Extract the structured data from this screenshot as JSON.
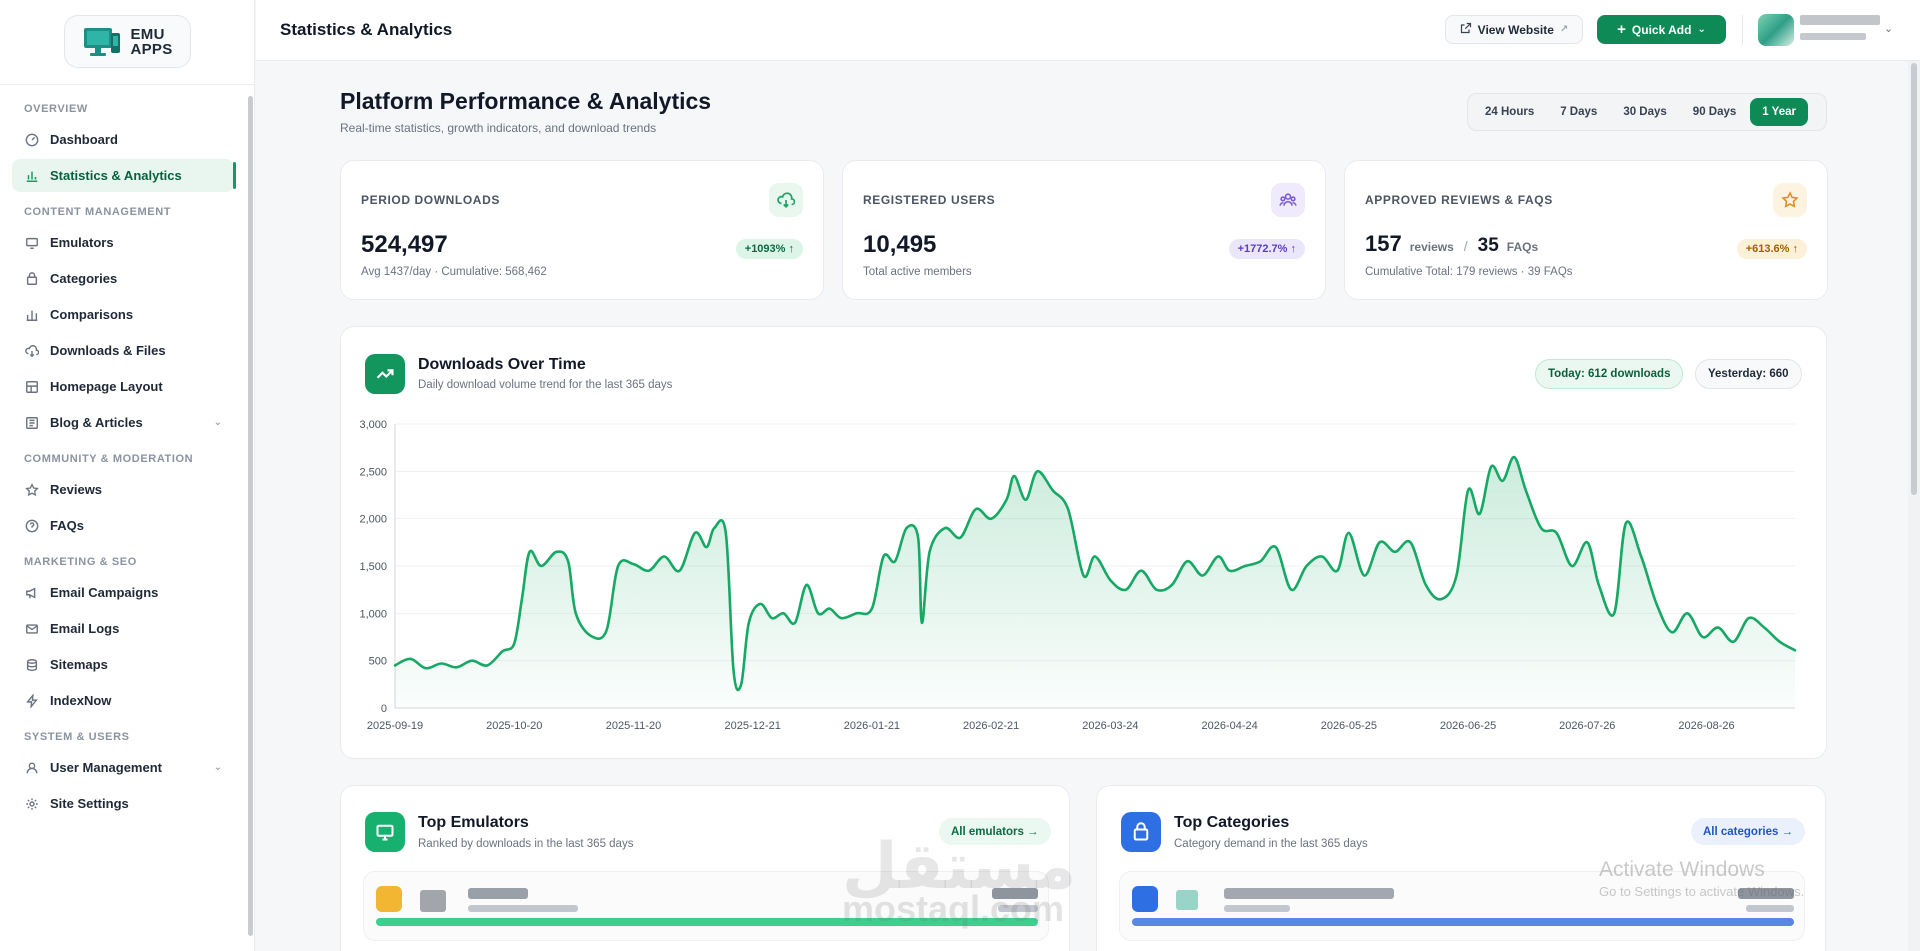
{
  "sidebar": {
    "logo_line1": "EMU",
    "logo_line2": "APPS",
    "sections": [
      {
        "title": "OVERVIEW",
        "items": [
          {
            "label": "Dashboard",
            "icon": "gauge-icon",
            "active": false
          },
          {
            "label": "Statistics & Analytics",
            "icon": "bar-chart-icon",
            "active": true
          }
        ]
      },
      {
        "title": "CONTENT MANAGEMENT",
        "items": [
          {
            "label": "Emulators",
            "icon": "monitor-icon"
          },
          {
            "label": "Categories",
            "icon": "folder-icon"
          },
          {
            "label": "Comparisons",
            "icon": "columns-icon"
          },
          {
            "label": "Downloads & Files",
            "icon": "cloud-download-icon"
          },
          {
            "label": "Homepage Layout",
            "icon": "layout-icon"
          },
          {
            "label": "Blog & Articles",
            "icon": "article-icon",
            "expandable": true
          }
        ]
      },
      {
        "title": "COMMUNITY & MODERATION",
        "items": [
          {
            "label": "Reviews",
            "icon": "star-icon"
          },
          {
            "label": "FAQs",
            "icon": "help-circle-icon"
          }
        ]
      },
      {
        "title": "MARKETING & SEO",
        "items": [
          {
            "label": "Email Campaigns",
            "icon": "megaphone-icon"
          },
          {
            "label": "Email Logs",
            "icon": "mail-icon"
          },
          {
            "label": "Sitemaps",
            "icon": "database-icon"
          },
          {
            "label": "IndexNow",
            "icon": "bolt-icon"
          }
        ]
      },
      {
        "title": "SYSTEM & USERS",
        "items": [
          {
            "label": "User Management",
            "icon": "users-icon",
            "expandable": true
          },
          {
            "label": "Site Settings",
            "icon": "gear-icon"
          }
        ]
      }
    ]
  },
  "topbar": {
    "title": "Statistics & Analytics",
    "view_website": "View Website",
    "quick_add": "Quick Add"
  },
  "header": {
    "title": "Platform Performance & Analytics",
    "subtitle": "Real-time statistics, growth indicators, and download trends",
    "ranges": [
      "24 Hours",
      "7 Days",
      "30 Days",
      "90 Days",
      "1 Year"
    ],
    "selected_range": "1 Year"
  },
  "stats": {
    "downloads": {
      "label": "PERIOD DOWNLOADS",
      "value": "524,497",
      "note": "Avg 1437/day · Cumulative: 568,462",
      "change": "+1093% ↑"
    },
    "users": {
      "label": "REGISTERED USERS",
      "value": "10,495",
      "note": "Total active members",
      "change": "+1772.7% ↑"
    },
    "reviews": {
      "label": "APPROVED REVIEWS & FAQS",
      "reviews_value": "157",
      "reviews_unit": "reviews",
      "separator": "/",
      "faqs_value": "35",
      "faqs_unit": "FAQs",
      "note": "Cumulative Total: 179 reviews · 39 FAQs",
      "change": "+613.6% ↑"
    }
  },
  "chart_card": {
    "title": "Downloads Over Time",
    "subtitle": "Daily download volume trend for the last 365 days",
    "today": "Today: 612 downloads",
    "yesterday": "Yesterday: 660"
  },
  "chart_data": {
    "type": "area",
    "title": "Downloads Over Time",
    "xlabel": "",
    "ylabel": "",
    "ylim": [
      0,
      3000
    ],
    "y_ticks": [
      "0",
      "500",
      "1,000",
      "1,500",
      "2,000",
      "2,500",
      "3,000"
    ],
    "x_tick_labels": [
      "2025-09-19",
      "2025-10-20",
      "2025-11-20",
      "2025-12-21",
      "2026-01-21",
      "2026-02-21",
      "2026-03-24",
      "2026-04-24",
      "2026-05-25",
      "2026-06-25",
      "2026-07-26",
      "2026-08-26"
    ],
    "x_start": "2025-09-19",
    "x_end": "2026-09-18",
    "grid": true,
    "color": "#16a864",
    "points": [
      [
        "2025-09-19",
        450
      ],
      [
        "2025-09-23",
        520
      ],
      [
        "2025-09-27",
        420
      ],
      [
        "2025-10-01",
        470
      ],
      [
        "2025-10-05",
        430
      ],
      [
        "2025-10-09",
        500
      ],
      [
        "2025-10-13",
        450
      ],
      [
        "2025-10-17",
        600
      ],
      [
        "2025-10-20",
        680
      ],
      [
        "2025-10-22",
        1150
      ],
      [
        "2025-10-24",
        1650
      ],
      [
        "2025-10-27",
        1500
      ],
      [
        "2025-10-31",
        1650
      ],
      [
        "2025-11-03",
        1550
      ],
      [
        "2025-11-05",
        1000
      ],
      [
        "2025-11-09",
        760
      ],
      [
        "2025-11-13",
        820
      ],
      [
        "2025-11-16",
        1500
      ],
      [
        "2025-11-20",
        1520
      ],
      [
        "2025-11-24",
        1450
      ],
      [
        "2025-11-28",
        1600
      ],
      [
        "2025-12-02",
        1450
      ],
      [
        "2025-12-06",
        1850
      ],
      [
        "2025-12-09",
        1700
      ],
      [
        "2025-12-11",
        1900
      ],
      [
        "2025-12-14",
        1850
      ],
      [
        "2025-12-16",
        400
      ],
      [
        "2025-12-18",
        250
      ],
      [
        "2025-12-20",
        900
      ],
      [
        "2025-12-23",
        1100
      ],
      [
        "2025-12-26",
        950
      ],
      [
        "2025-12-29",
        1000
      ],
      [
        "2026-01-01",
        900
      ],
      [
        "2026-01-04",
        1300
      ],
      [
        "2026-01-07",
        1000
      ],
      [
        "2026-01-10",
        1050
      ],
      [
        "2026-01-13",
        950
      ],
      [
        "2026-01-17",
        1000
      ],
      [
        "2026-01-21",
        1050
      ],
      [
        "2026-01-24",
        1600
      ],
      [
        "2026-01-27",
        1550
      ],
      [
        "2026-01-30",
        1900
      ],
      [
        "2026-02-02",
        1800
      ],
      [
        "2026-02-03",
        900
      ],
      [
        "2026-02-05",
        1650
      ],
      [
        "2026-02-09",
        1900
      ],
      [
        "2026-02-13",
        1800
      ],
      [
        "2026-02-17",
        2100
      ],
      [
        "2026-02-21",
        2000
      ],
      [
        "2026-02-25",
        2200
      ],
      [
        "2026-02-27",
        2450
      ],
      [
        "2026-03-02",
        2200
      ],
      [
        "2026-03-05",
        2500
      ],
      [
        "2026-03-09",
        2300
      ],
      [
        "2026-03-13",
        2100
      ],
      [
        "2026-03-17",
        1400
      ],
      [
        "2026-03-20",
        1600
      ],
      [
        "2026-03-24",
        1350
      ],
      [
        "2026-03-28",
        1250
      ],
      [
        "2026-04-01",
        1450
      ],
      [
        "2026-04-05",
        1250
      ],
      [
        "2026-04-09",
        1300
      ],
      [
        "2026-04-13",
        1550
      ],
      [
        "2026-04-17",
        1400
      ],
      [
        "2026-04-21",
        1600
      ],
      [
        "2026-04-24",
        1450
      ],
      [
        "2026-04-28",
        1500
      ],
      [
        "2026-05-02",
        1550
      ],
      [
        "2026-05-06",
        1700
      ],
      [
        "2026-05-10",
        1250
      ],
      [
        "2026-05-14",
        1500
      ],
      [
        "2026-05-18",
        1600
      ],
      [
        "2026-05-22",
        1450
      ],
      [
        "2026-05-25",
        1850
      ],
      [
        "2026-05-29",
        1400
      ],
      [
        "2026-06-02",
        1750
      ],
      [
        "2026-06-06",
        1650
      ],
      [
        "2026-06-10",
        1750
      ],
      [
        "2026-06-14",
        1300
      ],
      [
        "2026-06-18",
        1150
      ],
      [
        "2026-06-22",
        1400
      ],
      [
        "2026-06-25",
        2300
      ],
      [
        "2026-06-28",
        2050
      ],
      [
        "2026-07-01",
        2550
      ],
      [
        "2026-07-04",
        2400
      ],
      [
        "2026-07-07",
        2650
      ],
      [
        "2026-07-10",
        2300
      ],
      [
        "2026-07-14",
        1900
      ],
      [
        "2026-07-18",
        1850
      ],
      [
        "2026-07-22",
        1500
      ],
      [
        "2026-07-26",
        1750
      ],
      [
        "2026-07-29",
        1300
      ],
      [
        "2026-08-02",
        1000
      ],
      [
        "2026-08-05",
        1950
      ],
      [
        "2026-08-09",
        1600
      ],
      [
        "2026-08-13",
        1100
      ],
      [
        "2026-08-17",
        800
      ],
      [
        "2026-08-21",
        1000
      ],
      [
        "2026-08-25",
        750
      ],
      [
        "2026-08-29",
        850
      ],
      [
        "2026-09-02",
        700
      ],
      [
        "2026-09-06",
        950
      ],
      [
        "2026-09-10",
        850
      ],
      [
        "2026-09-14",
        700
      ],
      [
        "2026-09-18",
        610
      ]
    ]
  },
  "top_emulators": {
    "title": "Top Emulators",
    "subtitle": "Ranked by downloads in the last 365 days",
    "link": "All emulators →",
    "bar_fraction": 1.0,
    "bar_color": "#3ccf8e"
  },
  "top_categories": {
    "title": "Top Categories",
    "subtitle": "Category demand in the last 365 days",
    "link": "All categories →",
    "bar_fraction": 1.0,
    "bar_color": "#5b86e5"
  },
  "watermark": {
    "arabic": "مستقل",
    "latin": "mostaql.com",
    "activate_title": "Activate Windows",
    "activate_sub": "Go to Settings to activate Windows."
  },
  "colors": {
    "brand": "#0e8a57",
    "accent_purple": "#7c5cd6",
    "accent_orange": "#f0a020"
  }
}
